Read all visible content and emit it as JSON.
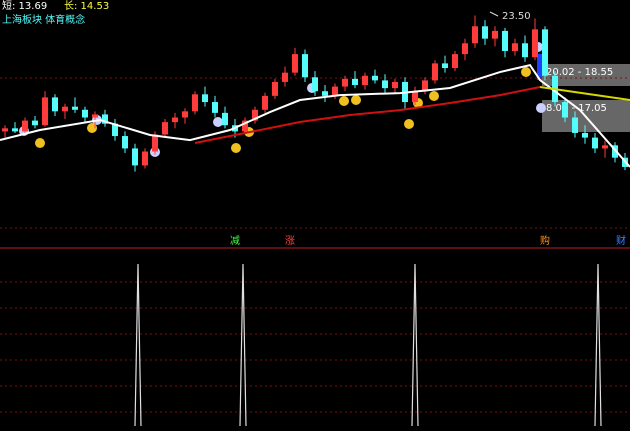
{
  "chart_data": {
    "type": "candlestick",
    "header": {
      "short_label": "短: 13.69",
      "long_label": "长: 14.53",
      "sector": "上海板块 体育概念"
    },
    "annotations": {
      "peak": "23.50",
      "range_upper": "20.02 - 18.55",
      "range_lower": "8.02 - 17.05"
    },
    "signal_labels": [
      "减",
      "涨",
      "购",
      "财"
    ],
    "xlim": [
      -0.5,
      62.5
    ],
    "ylim": [
      9.3,
      24.5
    ],
    "up_color": "#ff3c3c",
    "down_color": "#54fcfc",
    "ohlc": [
      [
        16.0,
        16.4,
        15.6,
        16.2
      ],
      [
        16.2,
        16.6,
        15.9,
        16.0
      ],
      [
        16.0,
        16.9,
        15.8,
        16.7
      ],
      [
        16.7,
        17.0,
        16.2,
        16.4
      ],
      [
        16.4,
        18.6,
        16.3,
        18.2
      ],
      [
        18.2,
        18.4,
        17.0,
        17.3
      ],
      [
        17.3,
        17.8,
        16.8,
        17.6
      ],
      [
        17.6,
        18.2,
        17.2,
        17.4
      ],
      [
        17.4,
        17.6,
        16.6,
        16.9
      ],
      [
        16.9,
        17.3,
        16.2,
        17.1
      ],
      [
        17.1,
        17.4,
        16.3,
        16.5
      ],
      [
        16.5,
        16.8,
        15.4,
        15.7
      ],
      [
        15.7,
        16.0,
        14.6,
        14.9
      ],
      [
        14.9,
        15.2,
        13.4,
        13.8
      ],
      [
        13.8,
        14.9,
        13.6,
        14.7
      ],
      [
        14.7,
        16.0,
        14.5,
        15.8
      ],
      [
        15.8,
        16.8,
        15.6,
        16.6
      ],
      [
        16.6,
        17.2,
        16.2,
        16.9
      ],
      [
        16.9,
        17.5,
        16.5,
        17.3
      ],
      [
        17.3,
        18.6,
        17.1,
        18.4
      ],
      [
        18.4,
        18.9,
        17.6,
        17.9
      ],
      [
        17.9,
        18.3,
        16.9,
        17.2
      ],
      [
        17.2,
        17.6,
        16.2,
        16.4
      ],
      [
        16.4,
        16.8,
        15.6,
        16.0
      ],
      [
        16.0,
        16.9,
        15.8,
        16.7
      ],
      [
        16.7,
        17.6,
        16.5,
        17.4
      ],
      [
        17.4,
        18.5,
        17.2,
        18.3
      ],
      [
        18.3,
        19.4,
        18.1,
        19.2
      ],
      [
        19.2,
        20.2,
        18.9,
        19.8
      ],
      [
        19.8,
        21.4,
        19.6,
        21.0
      ],
      [
        21.0,
        21.3,
        19.2,
        19.5
      ],
      [
        19.5,
        19.9,
        18.3,
        18.6
      ],
      [
        18.6,
        19.0,
        17.9,
        18.3
      ],
      [
        18.3,
        19.1,
        18.1,
        18.9
      ],
      [
        18.9,
        19.6,
        18.6,
        19.4
      ],
      [
        19.4,
        19.9,
        18.8,
        19.0
      ],
      [
        19.0,
        19.8,
        18.7,
        19.6
      ],
      [
        19.6,
        20.0,
        19.1,
        19.3
      ],
      [
        19.3,
        19.7,
        18.5,
        18.8
      ],
      [
        18.8,
        19.4,
        18.4,
        19.2
      ],
      [
        19.2,
        19.5,
        17.4,
        17.9
      ],
      [
        17.9,
        18.9,
        17.7,
        18.6
      ],
      [
        18.6,
        19.5,
        18.4,
        19.3
      ],
      [
        19.3,
        20.6,
        19.1,
        20.4
      ],
      [
        20.4,
        20.9,
        19.8,
        20.1
      ],
      [
        20.1,
        21.2,
        19.9,
        21.0
      ],
      [
        21.0,
        22.0,
        20.6,
        21.7
      ],
      [
        21.7,
        23.5,
        21.4,
        22.8
      ],
      [
        22.8,
        23.2,
        21.6,
        22.0
      ],
      [
        22.0,
        22.8,
        21.5,
        22.5
      ],
      [
        22.5,
        22.7,
        20.8,
        21.2
      ],
      [
        21.2,
        22.0,
        20.9,
        21.7
      ],
      [
        21.7,
        22.2,
        20.5,
        20.8
      ],
      [
        20.8,
        23.3,
        20.6,
        22.6
      ],
      [
        22.6,
        22.8,
        19.3,
        19.6
      ],
      [
        19.6,
        19.9,
        17.6,
        17.9
      ],
      [
        17.9,
        18.2,
        16.6,
        16.9
      ],
      [
        16.9,
        17.3,
        15.6,
        15.9
      ],
      [
        15.9,
        16.4,
        15.2,
        15.6
      ],
      [
        15.6,
        15.9,
        14.6,
        14.9
      ],
      [
        14.9,
        15.4,
        14.3,
        15.1
      ],
      [
        15.1,
        15.3,
        14.0,
        14.3
      ],
      [
        14.3,
        14.6,
        13.5,
        13.7
      ]
    ],
    "lines": [
      {
        "color": "#ffffff",
        "x": [
          -0.5,
          3.5,
          9.5,
          14.5,
          18.5,
          22.5,
          26.5,
          29.5,
          33.5,
          39.5,
          44.5,
          49.5,
          52.5,
          53.5,
          57.5,
          62.5
        ],
        "values": [
          15.44,
          16.09,
          16.74,
          15.77,
          15.44,
          16.09,
          17.25,
          18.03,
          18.35,
          18.48,
          18.81,
          19.84,
          20.29,
          19.32,
          17.38,
          13.7
        ]
      },
      {
        "color": "#d01010",
        "x": [
          19,
          24.5,
          29.5,
          34.5,
          39.5,
          44.5,
          49.5,
          53.5
        ],
        "values": [
          15.25,
          15.96,
          16.61,
          17.06,
          17.38,
          17.84,
          18.35,
          18.87
        ]
      },
      {
        "color": "#d8d800",
        "x": [
          53.5,
          62.5
        ],
        "values": [
          18.87,
          18.03
        ]
      }
    ],
    "signal_x": [
      13.3,
      23.8,
      41.0,
      59.3
    ]
  }
}
